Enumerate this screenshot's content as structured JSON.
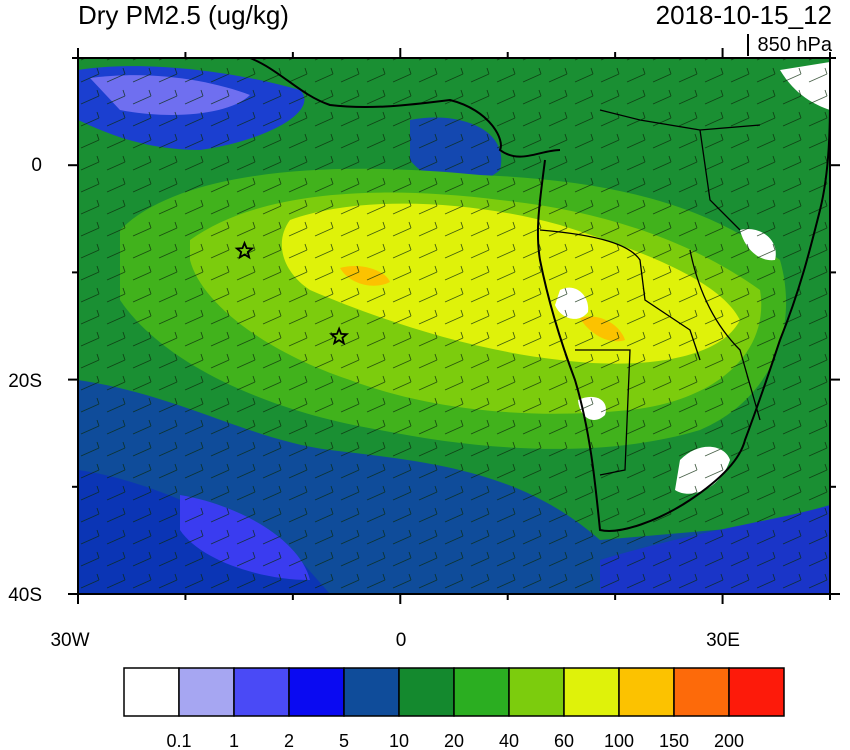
{
  "title": "Dry PM2.5 (ug/kg)",
  "datetime": "2018-10-15_12",
  "level": "850 hPa",
  "lon_ticks": [
    "30W",
    "0",
    "30E"
  ],
  "lat_ticks": [
    "0",
    "20S",
    "40S"
  ],
  "colorbar": {
    "colors": [
      "#ffffff",
      "#a6a6f2",
      "#4a4af6",
      "#0a0af2",
      "#0f4c9a",
      "#14892e",
      "#2bae21",
      "#7ccc0d",
      "#dff20a",
      "#fcc200",
      "#fd6a0a",
      "#fd1a0a"
    ],
    "labels": [
      "0.1",
      "1",
      "2",
      "5",
      "10",
      "20",
      "40",
      "60",
      "100",
      "150",
      "200"
    ]
  },
  "markers": [
    {
      "name": "star-marker-1",
      "lon": -14.5,
      "lat": -8
    },
    {
      "name": "star-marker-2",
      "lon": -5.7,
      "lat": -16
    }
  ]
}
